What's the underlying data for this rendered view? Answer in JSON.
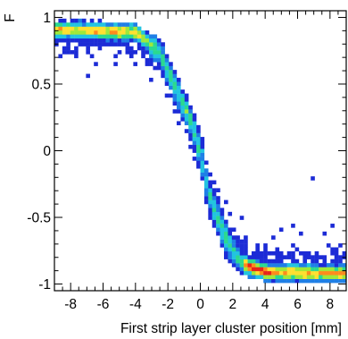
{
  "chart_data": {
    "type": "heatmap",
    "title": "",
    "xlabel": "First strip layer cluster position [mm]",
    "ylabel": "F",
    "xlim": [
      -9.0,
      9.0
    ],
    "ylim": [
      -1.05,
      1.05
    ],
    "xticks": [
      -8,
      -6,
      -4,
      -2,
      0,
      2,
      4,
      6,
      8
    ],
    "xtick_labels": [
      "-8",
      "-6",
      "-4",
      "-2",
      "0",
      "2",
      "4",
      "6",
      "8"
    ],
    "yticks": [
      -1,
      -0.5,
      0,
      0.5,
      1
    ],
    "ytick_labels": [
      "-1",
      "-0.5",
      "0",
      "0.5",
      "1"
    ],
    "color_scale": [
      "#1c2bd6",
      "#1f7fe6",
      "#22c4e0",
      "#2bd98f",
      "#9fe83a",
      "#ffe030",
      "#ff8a1c",
      "#e8231a"
    ],
    "grid": false,
    "legend": "none",
    "trend": {
      "description_points_x": [
        -9.0,
        -4.0,
        -2.5,
        -1.5,
        -0.5,
        0.0,
        0.5,
        1.5,
        2.5,
        4.0,
        9.0
      ],
      "description_points_F": [
        0.91,
        0.89,
        0.74,
        0.46,
        0.21,
        -0.03,
        -0.32,
        -0.64,
        -0.84,
        -0.91,
        -0.92
      ]
    },
    "dense_regions": [
      {
        "x_range": [
          -9.0,
          -3.5
        ],
        "F_range": [
          0.8,
          0.99
        ],
        "peak_level": 5
      },
      {
        "x_range": [
          2.5,
          9.0
        ],
        "F_range": [
          -0.98,
          -0.82
        ],
        "peak_level": 7
      },
      {
        "x_range": [
          -3.0,
          3.0
        ],
        "F_range": [
          -0.9,
          0.8
        ],
        "peak_level": 4
      }
    ],
    "outliers": [
      {
        "x": 7.0,
        "F": -0.2
      },
      {
        "x": 5.0,
        "F": -0.6
      },
      {
        "x": 5.6,
        "F": -0.55
      },
      {
        "x": 7.7,
        "F": -0.63
      },
      {
        "x": 2.6,
        "F": -0.51
      },
      {
        "x": -7.6,
        "F": 0.7
      },
      {
        "x": -6.4,
        "F": 0.66
      },
      {
        "x": -5.2,
        "F": 0.72
      },
      {
        "x": -6.9,
        "F": 0.56
      },
      {
        "x": -4.3,
        "F": 0.71
      },
      {
        "x": -3.9,
        "F": 0.66
      },
      {
        "x": -1.9,
        "F": 0.55
      },
      {
        "x": -0.2,
        "F": 0.0
      },
      {
        "x": 1.2,
        "F": -0.36
      },
      {
        "x": -1.1,
        "F": 0.29
      },
      {
        "x": 8.1,
        "F": -0.55
      },
      {
        "x": 6.3,
        "F": -0.62
      },
      {
        "x": 4.4,
        "F": -0.66
      }
    ]
  }
}
